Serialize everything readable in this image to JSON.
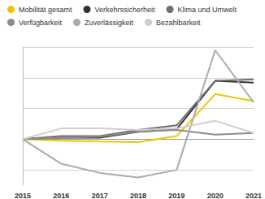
{
  "chart_data": {
    "type": "line",
    "categories": [
      "2015",
      "2016",
      "2017",
      "2018",
      "2019",
      "2020",
      "2021"
    ],
    "series": [
      {
        "name": "Mobilität gesamt",
        "color": "#f2c500",
        "values": [
          0,
          -0.05,
          -0.08,
          -0.1,
          0.1,
          1.47,
          1.24
        ]
      },
      {
        "name": "Verkehrssicherheit",
        "color": "#333333",
        "values": [
          0,
          0.05,
          0.05,
          0.24,
          0.32,
          1.9,
          1.84
        ]
      },
      {
        "name": "Klima und Umwelt",
        "color": "#6e6e6e",
        "values": [
          0,
          0.1,
          0.1,
          0.3,
          0.45,
          1.9,
          1.95
        ]
      },
      {
        "name": "Verfügbarkeit",
        "color": "#8c8c8c",
        "values": [
          0,
          0.05,
          0.08,
          0.25,
          0.3,
          0.15,
          0.2
        ]
      },
      {
        "name": "Zuverlässigkeit",
        "color": "#ababab",
        "values": [
          0,
          -0.8,
          -1.1,
          -1.25,
          -1.0,
          2.9,
          1.2
        ]
      },
      {
        "name": "Bezahlbarkeit",
        "color": "#cfcfcf",
        "values": [
          0,
          0.35,
          0.35,
          0.3,
          0.35,
          0.6,
          0.2
        ]
      }
    ],
    "ylim": [
      -1.5,
      3
    ],
    "yticks": [
      -1,
      0,
      1,
      2,
      3
    ],
    "grid": true,
    "legend": "top",
    "tick_labels": "x",
    "marker": "none",
    "line_style": "solid"
  }
}
